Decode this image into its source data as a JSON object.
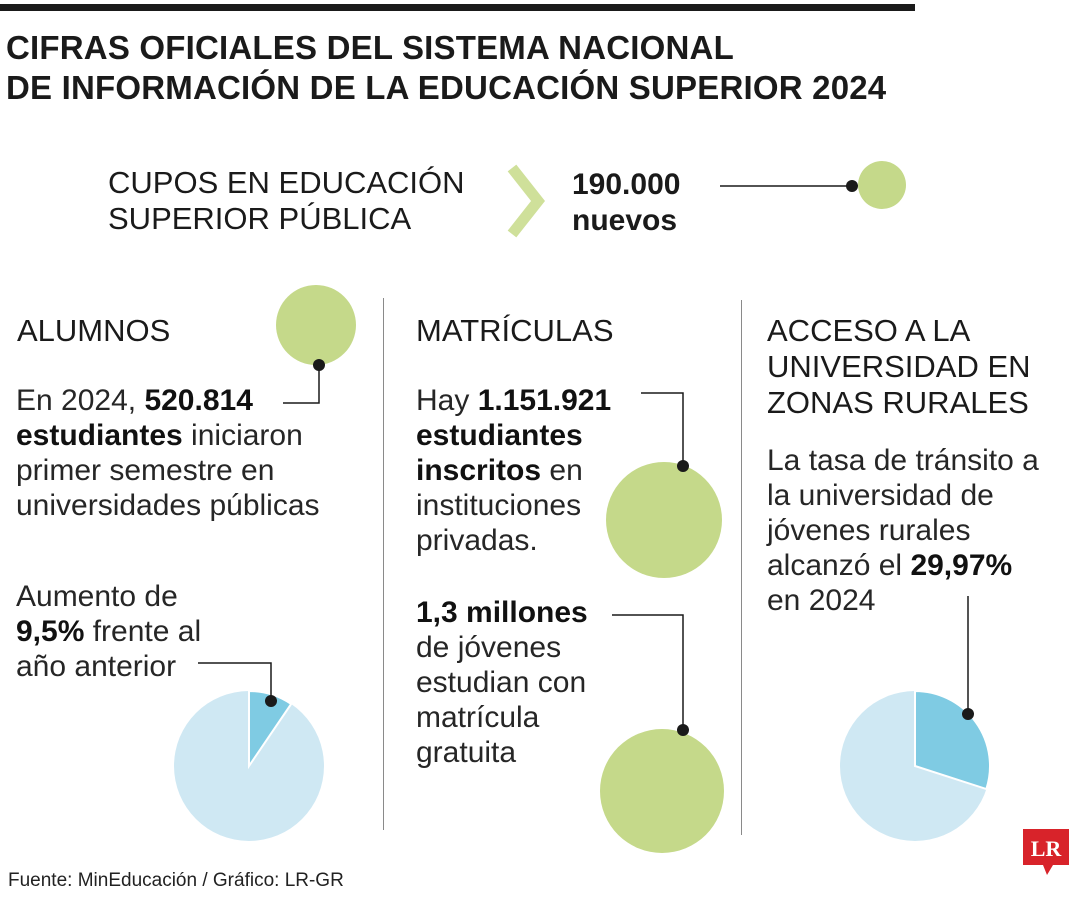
{
  "title": {
    "line1": "CIFRAS OFICIALES DEL SISTEMA NACIONAL",
    "line2": "DE INFORMACIÓN DE LA EDUCACIÓN SUPERIOR 2024"
  },
  "cupos": {
    "label_line1": "CUPOS EN EDUCACIÓN",
    "label_line2": "SUPERIOR PÚBLICA",
    "value_line1": "190.000",
    "value_line2": "nuevos"
  },
  "alumnos": {
    "heading": "ALUMNOS",
    "pre": "En 2024, ",
    "number": "520.814",
    "strong": "estudiantes",
    "rest": " iniciaron",
    "line3": "primer semestre en",
    "line4": "universidades públicas",
    "increase_line1": "Aumento de",
    "increase_value": "9,5%",
    "increase_rest": " frente al",
    "increase_line3": "año anterior",
    "increase_percent": 9.5
  },
  "matriculas": {
    "heading": "MATRÍCULAS",
    "pre": "Hay ",
    "number": "1.151.921",
    "strong1": "estudiantes",
    "strong2": "inscritos",
    "rest2": " en",
    "line4": "instituciones",
    "line5": "privadas.",
    "gratuita_value": "1,3 millones",
    "gratuita_line2": "de jóvenes",
    "gratuita_line3": "estudian con",
    "gratuita_line4": "matrícula",
    "gratuita_line5": "gratuita"
  },
  "rural": {
    "heading_line1": "ACCESO A LA",
    "heading_line2": "UNIVERSIDAD EN",
    "heading_line3": "ZONAS RURALES",
    "line1": "La tasa de tránsito a",
    "line2": "la universidad de",
    "line3": "jóvenes rurales",
    "line4_pre": "alcanzó el ",
    "value": "29,97%",
    "line5": "en 2024",
    "percent": 29.97
  },
  "footer": "Fuente: MinEducación / Gráfico: LR-GR",
  "logo_text": "LR",
  "colors": {
    "green": "#c5d98a",
    "chevron": "#cfe09a",
    "pie_light": "#cfe8f3",
    "pie_dark": "#7fcbe3",
    "logo_red": "#d8232a"
  },
  "icons": {
    "arrow": "chevron-right-icon"
  }
}
